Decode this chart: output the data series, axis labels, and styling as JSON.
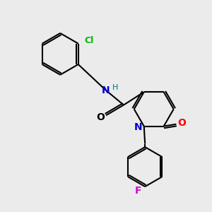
{
  "background_color": "#ebebeb",
  "bond_color": "#000000",
  "bond_width": 1.5,
  "atom_colors": {
    "N": "#0000cc",
    "O_amide": "#000000",
    "O_lactam": "#ff0000",
    "Cl": "#00bb00",
    "F": "#dd00dd",
    "H": "#007777"
  },
  "font_size": 9,
  "font_size_h": 8
}
